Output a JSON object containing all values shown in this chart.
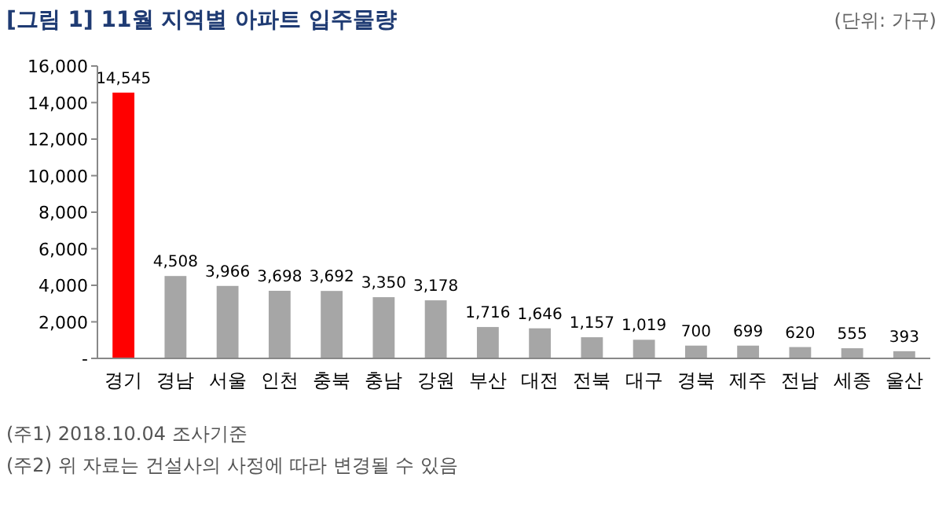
{
  "chart_data": {
    "type": "bar",
    "title": "[그림 1] 11월 지역별 아파트 입주물량",
    "subtitle": "(단위: 가구)",
    "categories": [
      "경기",
      "경남",
      "서울",
      "인천",
      "충북",
      "충남",
      "강원",
      "부산",
      "대전",
      "전북",
      "대구",
      "경북",
      "제주",
      "전남",
      "세종",
      "울산"
    ],
    "values": [
      14545,
      4508,
      3966,
      3698,
      3692,
      3350,
      3178,
      1716,
      1646,
      1157,
      1019,
      700,
      699,
      620,
      555,
      393
    ],
    "colors": [
      "#ff0000",
      "#a6a6a6",
      "#a6a6a6",
      "#a6a6a6",
      "#a6a6a6",
      "#a6a6a6",
      "#a6a6a6",
      "#a6a6a6",
      "#a6a6a6",
      "#a6a6a6",
      "#a6a6a6",
      "#a6a6a6",
      "#a6a6a6",
      "#a6a6a6",
      "#a6a6a6",
      "#a6a6a6"
    ],
    "value_labels": [
      "14,545",
      "4,508",
      "3,966",
      "3,698",
      "3,692",
      "3,350",
      "3,178",
      "1,716",
      "1,646",
      "1,157",
      "1,019",
      "700",
      "699",
      "620",
      "555",
      "393"
    ],
    "ylim": [
      0,
      16000
    ],
    "yticks": [
      {
        "value": 0,
        "label": "-"
      },
      {
        "value": 2000,
        "label": "2,000"
      },
      {
        "value": 4000,
        "label": "4,000"
      },
      {
        "value": 6000,
        "label": "6,000"
      },
      {
        "value": 8000,
        "label": "8,000"
      },
      {
        "value": 10000,
        "label": "10,000"
      },
      {
        "value": 12000,
        "label": "12,000"
      },
      {
        "value": 14000,
        "label": "14,000"
      },
      {
        "value": 16000,
        "label": "16,000"
      }
    ],
    "grid": false,
    "annotations": [
      "(주1) 2018.10.04 조사기준",
      "(주2) 위 자료는 건설사의 사정에 따라 변경될 수 있음"
    ]
  }
}
